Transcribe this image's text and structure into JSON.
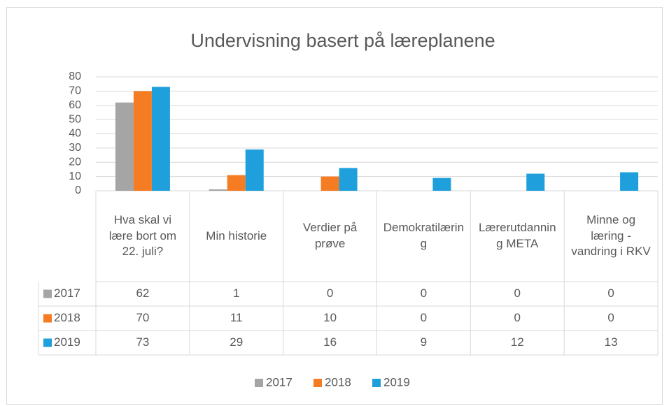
{
  "chart_data": {
    "type": "bar",
    "title": "Undervisning basert på læreplanene",
    "categories": [
      "Hva skal vi lære bort om 22. juli?",
      "Min historie",
      "Verdier på prøve",
      "Demokratilæring",
      "Lærerutdanning META",
      "Minne og læring - vandring i RKV"
    ],
    "series": [
      {
        "name": "2017",
        "color": "#a5a5a5",
        "values": [
          62,
          1,
          0,
          0,
          0,
          0
        ]
      },
      {
        "name": "2018",
        "color": "#f57c22",
        "values": [
          70,
          11,
          10,
          0,
          0,
          0
        ]
      },
      {
        "name": "2019",
        "color": "#1f9fdb",
        "values": [
          73,
          29,
          16,
          9,
          12,
          13
        ]
      }
    ],
    "ylim": [
      0,
      80
    ],
    "yticks": [
      0,
      10,
      20,
      30,
      40,
      50,
      60,
      70,
      80
    ],
    "grid": true,
    "legend": "bottom"
  }
}
